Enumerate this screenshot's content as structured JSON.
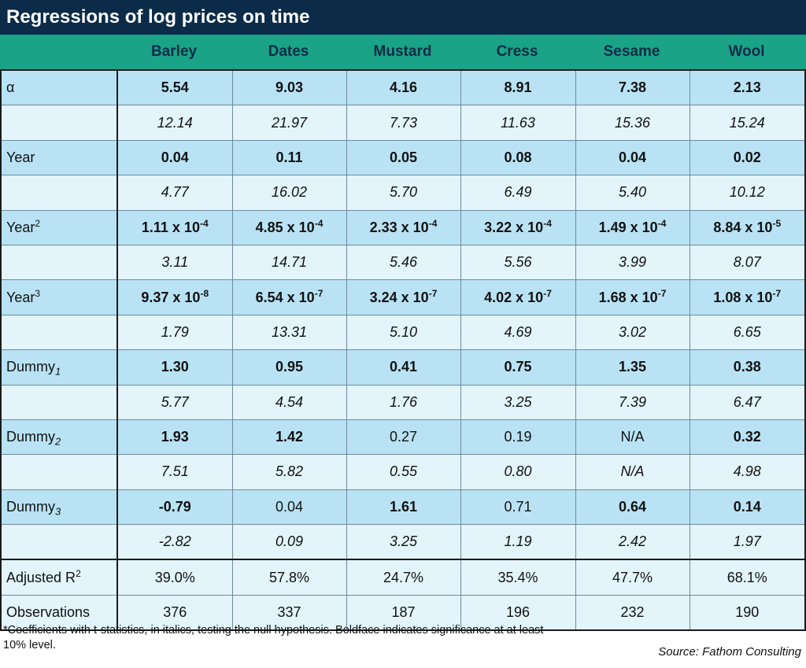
{
  "title": "Regressions of log prices on time",
  "columns": [
    "Barley",
    "Dates",
    "Mustard",
    "Cress",
    "Sesame",
    "Wool"
  ],
  "rows": [
    {
      "label": "α",
      "sup": "",
      "sub": "",
      "kind": "coef",
      "values": [
        "5.54",
        "9.03",
        "4.16",
        "8.91",
        "7.38",
        "2.13"
      ],
      "bold": [
        true,
        true,
        true,
        true,
        true,
        true
      ]
    },
    {
      "label": "",
      "sup": "",
      "sub": "",
      "kind": "tstat",
      "values": [
        "12.14",
        "21.97",
        "7.73",
        "11.63",
        "15.36",
        "15.24"
      ]
    },
    {
      "label": "Year",
      "sup": "",
      "sub": "",
      "kind": "coef",
      "values": [
        "0.04",
        "0.11",
        "0.05",
        "0.08",
        "0.04",
        "0.02"
      ],
      "bold": [
        true,
        true,
        true,
        true,
        true,
        true
      ]
    },
    {
      "label": "",
      "sup": "",
      "sub": "",
      "kind": "tstat",
      "values": [
        "4.77",
        "16.02",
        "5.70",
        "6.49",
        "5.40",
        "10.12"
      ]
    },
    {
      "label": "Year",
      "sup": "2",
      "sub": "",
      "kind": "coef",
      "values": [
        "1.11 x 10",
        "4.85 x 10",
        "2.33 x 10",
        "3.22 x 10",
        "1.49 x 10",
        "8.84 x 10"
      ],
      "exps": [
        "-4",
        "-4",
        "-4",
        "-4",
        "-4",
        "-5"
      ],
      "bold": [
        true,
        true,
        true,
        true,
        true,
        true
      ]
    },
    {
      "label": "",
      "sup": "",
      "sub": "",
      "kind": "tstat",
      "values": [
        "3.11",
        "14.71",
        "5.46",
        "5.56",
        "3.99",
        "8.07"
      ]
    },
    {
      "label": "Year",
      "sup": "3",
      "sub": "",
      "kind": "coef",
      "values": [
        "9.37 x 10",
        "6.54 x 10",
        "3.24 x 10",
        "4.02 x 10",
        "1.68 x 10",
        "1.08 x 10"
      ],
      "exps": [
        "-8",
        "-7",
        "-7",
        "-7",
        "-7",
        "-7"
      ],
      "bold": [
        true,
        true,
        true,
        true,
        true,
        true
      ]
    },
    {
      "label": "",
      "sup": "",
      "sub": "",
      "kind": "tstat",
      "values": [
        "1.79",
        "13.31",
        "5.10",
        "4.69",
        "3.02",
        "6.65"
      ]
    },
    {
      "label": "Dummy",
      "sup": "",
      "sub": "1",
      "kind": "coef",
      "values": [
        "1.30",
        "0.95",
        "0.41",
        "0.75",
        "1.35",
        "0.38"
      ],
      "bold": [
        true,
        true,
        true,
        true,
        true,
        true
      ]
    },
    {
      "label": "",
      "sup": "",
      "sub": "",
      "kind": "tstat",
      "values": [
        "5.77",
        "4.54",
        "1.76",
        "3.25",
        "7.39",
        "6.47"
      ]
    },
    {
      "label": "Dummy",
      "sup": "",
      "sub": "2",
      "kind": "coef",
      "values": [
        "1.93",
        "1.42",
        "0.27",
        "0.19",
        "N/A",
        "0.32"
      ],
      "bold": [
        true,
        true,
        false,
        false,
        false,
        true
      ]
    },
    {
      "label": "",
      "sup": "",
      "sub": "",
      "kind": "tstat",
      "values": [
        "7.51",
        "5.82",
        "0.55",
        "0.80",
        "N/A",
        "4.98"
      ]
    },
    {
      "label": "Dummy",
      "sup": "",
      "sub": "3",
      "kind": "coef",
      "values": [
        "-0.79",
        "0.04",
        "1.61",
        "0.71",
        "0.64",
        "0.14"
      ],
      "bold": [
        true,
        false,
        true,
        false,
        true,
        true
      ]
    },
    {
      "label": "",
      "sup": "",
      "sub": "",
      "kind": "tstat",
      "values": [
        "-2.82",
        "0.09",
        "3.25",
        "1.19",
        "2.42",
        "1.97"
      ]
    },
    {
      "label": "Adjusted R",
      "sup": "2",
      "sub": "",
      "kind": "summary",
      "values": [
        "39.0%",
        "57.8%",
        "24.7%",
        "35.4%",
        "47.7%",
        "68.1%"
      ]
    },
    {
      "label": "Observations",
      "sup": "",
      "sub": "",
      "kind": "summary",
      "values": [
        "376",
        "337",
        "187",
        "196",
        "232",
        "190"
      ]
    }
  ],
  "footnote": "*Coefficients with t-statistics, in italics, testing the null hypothesis. Boldface indicates significance at at least 10% level.",
  "source": "Source: Fathom Consulting",
  "colors": {
    "title_bg": "#0b2b48",
    "header_bg": "#1aa386",
    "coef_bg": "#b9e3f4",
    "tstat_bg": "#e3f4fb"
  }
}
